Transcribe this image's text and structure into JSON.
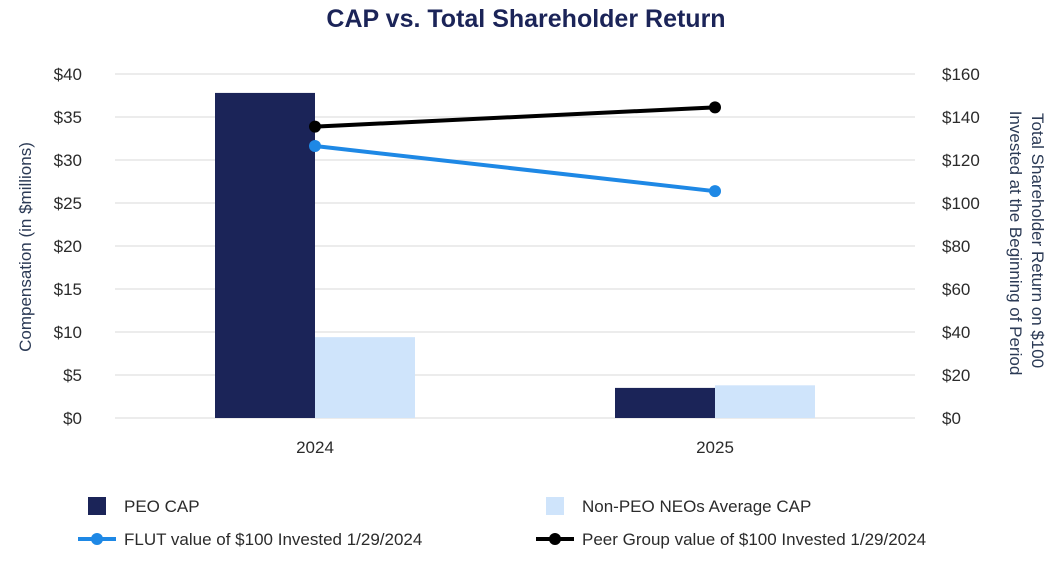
{
  "chart_data": {
    "type": "bar",
    "title": "CAP vs. Total Shareholder Return",
    "categories": [
      "2024",
      "2025"
    ],
    "ylabel": "Compensation (in $millions)",
    "y2label_lines": [
      "Total Shareholder Return on $100",
      "Invested at the Beginning of Period"
    ],
    "ylim": [
      0,
      40
    ],
    "y2lim": [
      0,
      160
    ],
    "yticks": [
      "$0",
      "$5",
      "$10",
      "$15",
      "$20",
      "$25",
      "$30",
      "$35",
      "$40"
    ],
    "y2ticks": [
      "$0",
      "$20",
      "$40",
      "$60",
      "$80",
      "$100",
      "$120",
      "$140",
      "$160"
    ],
    "bar_series": [
      {
        "name": "PEO CAP",
        "values": [
          37.8,
          3.5
        ],
        "color": "#1b2458"
      },
      {
        "name": "Non-PEO NEOs Average CAP",
        "values": [
          9.4,
          3.8
        ],
        "color": "#cfe4fb"
      }
    ],
    "line_series": [
      {
        "name": "FLUT value of $100 Invested 1/29/2024",
        "values": [
          126.5,
          105.5
        ],
        "color": "#1e88e5"
      },
      {
        "name": "Peer Group value of $100 Invested 1/29/2024",
        "values": [
          135.5,
          144.5
        ],
        "color": "#000000"
      }
    ]
  }
}
